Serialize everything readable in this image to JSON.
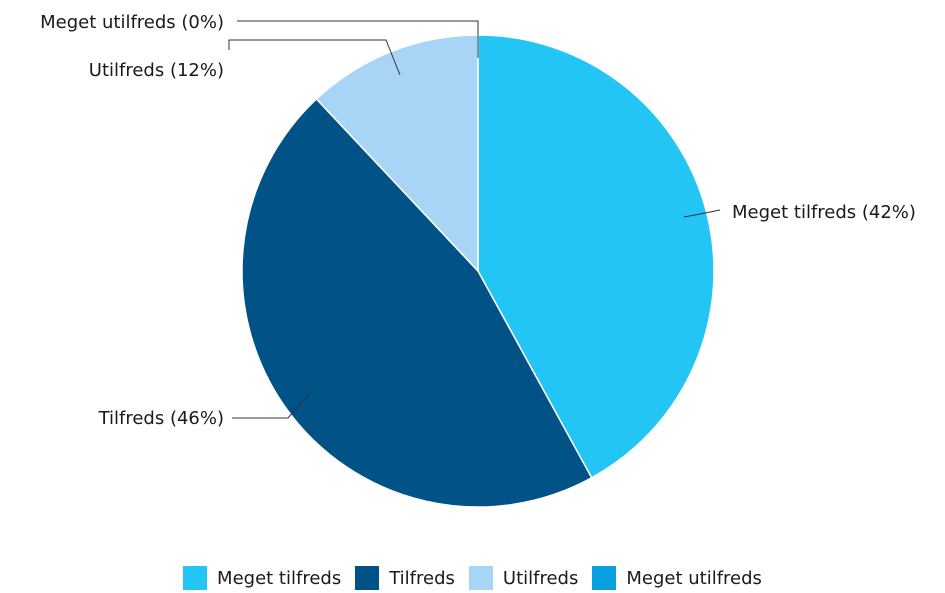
{
  "chart_data": {
    "type": "pie",
    "categories": [
      "Meget tilfreds",
      "Tilfreds",
      "Utilfreds",
      "Meget utilfreds"
    ],
    "values": [
      42,
      46,
      12,
      0
    ],
    "slice_labels": [
      "Meget tilfreds (42%)",
      "Tilfreds (46%)",
      "Utilfreds (12%)",
      "Meget utilfreds (0%)"
    ],
    "colors": [
      "#22C5F3",
      "#005287",
      "#A8D5F5",
      "#0A9FDF"
    ],
    "legend_position": "bottom"
  }
}
